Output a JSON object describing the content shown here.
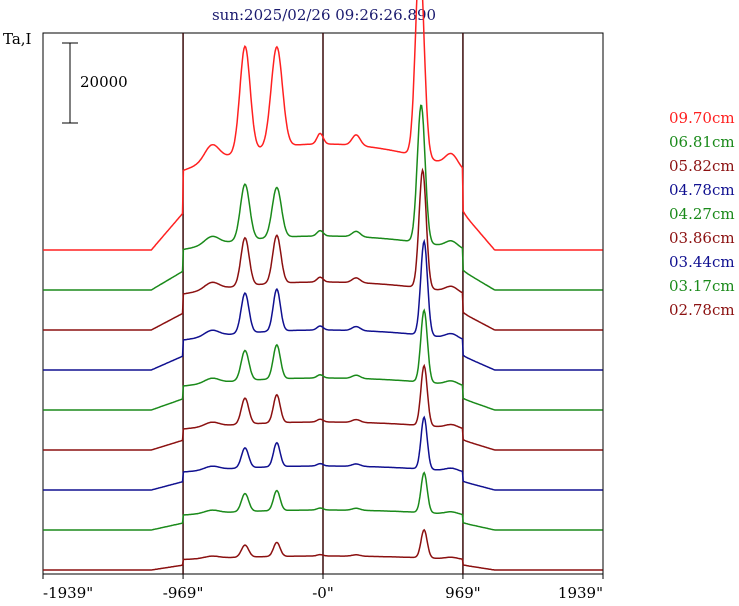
{
  "chart_data": {
    "type": "line",
    "title": "sun:2025/02/26 09:26:26.890",
    "ylabel": "Ta,I",
    "scale_bar_label": "20000",
    "scale_bar_value": 20000,
    "xlim": [
      -1939,
      1939
    ],
    "x_ticks": [
      -1939,
      -969,
      0,
      969,
      1939
    ],
    "x_tick_labels": [
      "-1939\"",
      "-969\"",
      "-0\"",
      "969\"",
      "1939\""
    ],
    "vertical_lines": [
      -969,
      0,
      969
    ],
    "offset_step": 20000,
    "grid": false,
    "legend_position": "right",
    "series": [
      {
        "name": "09.70cm",
        "color": "#ff2020",
        "baseline": 160000,
        "peaks": [
          {
            "x": -540,
            "amp": 53000,
            "w": 50
          },
          {
            "x": -320,
            "amp": 50000,
            "w": 55
          },
          {
            "x": 670,
            "amp": 99000,
            "w": 42
          }
        ],
        "plateau": 53000
      },
      {
        "name": "06.81cm",
        "color": "#1a8a1a",
        "baseline": 140000,
        "peaks": [
          {
            "x": -540,
            "amp": 28000,
            "w": 45
          },
          {
            "x": -320,
            "amp": 25000,
            "w": 45
          },
          {
            "x": 680,
            "amp": 69000,
            "w": 38
          }
        ],
        "plateau": 27000
      },
      {
        "name": "05.82cm",
        "color": "#8b1010",
        "baseline": 120000,
        "peaks": [
          {
            "x": -540,
            "amp": 24000,
            "w": 40
          },
          {
            "x": -320,
            "amp": 24000,
            "w": 40
          },
          {
            "x": 690,
            "amp": 59000,
            "w": 35
          }
        ],
        "plateau": 24000
      },
      {
        "name": "04.78cm",
        "color": "#101090",
        "baseline": 100000,
        "peaks": [
          {
            "x": -540,
            "amp": 20000,
            "w": 38
          },
          {
            "x": -320,
            "amp": 21000,
            "w": 35
          },
          {
            "x": 700,
            "amp": 47000,
            "w": 33
          }
        ],
        "plateau": 20000
      },
      {
        "name": "04.27cm",
        "color": "#1a8a1a",
        "baseline": 80000,
        "peaks": [
          {
            "x": -540,
            "amp": 15000,
            "w": 38
          },
          {
            "x": -320,
            "amp": 17000,
            "w": 35
          },
          {
            "x": 700,
            "amp": 36000,
            "w": 32
          }
        ],
        "plateau": 16000
      },
      {
        "name": "03.86cm",
        "color": "#8b1010",
        "baseline": 60000,
        "peaks": [
          {
            "x": -540,
            "amp": 13000,
            "w": 36
          },
          {
            "x": -320,
            "amp": 14000,
            "w": 33
          },
          {
            "x": 700,
            "amp": 30000,
            "w": 31
          }
        ],
        "plateau": 14000
      },
      {
        "name": "03.44cm",
        "color": "#101090",
        "baseline": 40000,
        "peaks": [
          {
            "x": -540,
            "amp": 10000,
            "w": 35
          },
          {
            "x": -320,
            "amp": 12000,
            "w": 32
          },
          {
            "x": 700,
            "amp": 26000,
            "w": 30
          }
        ],
        "plateau": 12000
      },
      {
        "name": "03.17cm",
        "color": "#1a8a1a",
        "baseline": 20000,
        "peaks": [
          {
            "x": -540,
            "amp": 9000,
            "w": 35
          },
          {
            "x": -320,
            "amp": 10000,
            "w": 32
          },
          {
            "x": 700,
            "amp": 20000,
            "w": 30
          }
        ],
        "plateau": 10000
      },
      {
        "name": "02.78cm",
        "color": "#8b1010",
        "baseline": 0,
        "peaks": [
          {
            "x": -540,
            "amp": 6000,
            "w": 35
          },
          {
            "x": -320,
            "amp": 7000,
            "w": 32
          },
          {
            "x": 700,
            "amp": 14000,
            "w": 30
          }
        ],
        "plateau": 7000
      }
    ]
  }
}
